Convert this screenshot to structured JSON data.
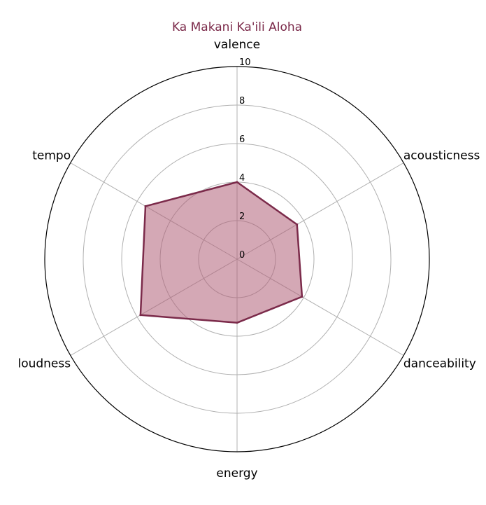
{
  "chart_data": {
    "type": "radar",
    "title": "Ka Makani Ka'ili Aloha",
    "axes": [
      "valence",
      "acousticness",
      "danceability",
      "energy",
      "loudness",
      "tempo"
    ],
    "rlim": [
      0,
      10
    ],
    "r_ticks": [
      "0",
      "2",
      "4",
      "6",
      "8",
      "10"
    ],
    "r_tick_values": [
      0,
      2,
      4,
      6,
      8,
      10
    ],
    "series": [
      {
        "values": [
          4.0,
          3.6,
          3.9,
          3.3,
          5.8,
          5.5
        ]
      }
    ],
    "grid": true,
    "colors": {
      "line": "#7b2a4a",
      "fill": "#b06078",
      "grid": "#b0b0b0",
      "frame": "#000000"
    }
  }
}
